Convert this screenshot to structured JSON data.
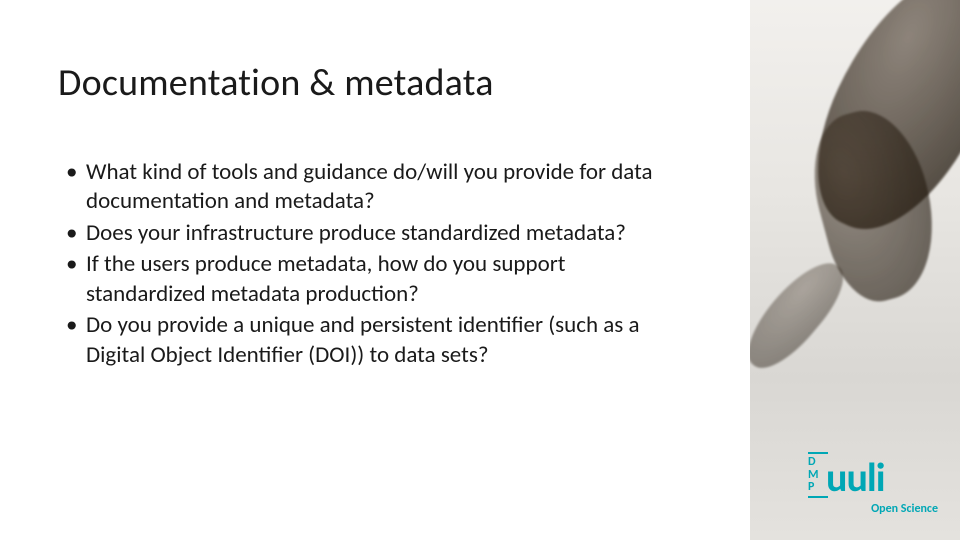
{
  "slide": {
    "title": "Documentation & metadata",
    "bullets": [
      "What kind of tools and guidance do/will you provide for data documentation and metadata?",
      "Does your infrastructure  produce standardized metadata?",
      "If the users produce metadata, how do you support standardized metadata production?",
      "Do you provide a unique and persistent identifier (such as a Digital Object Identifier (DOI)) to data sets?"
    ]
  },
  "logo": {
    "dmp_lines": "D\nM\nP",
    "brand": "uuli",
    "subtitle": "Open Science",
    "color": "#00a7b5"
  },
  "colors": {
    "text": "#1a1a1a",
    "background": "#ffffff",
    "accent": "#00a7b5"
  },
  "typography": {
    "title_fontsize": 38,
    "body_fontsize": 23,
    "font_family": "Calibri"
  }
}
